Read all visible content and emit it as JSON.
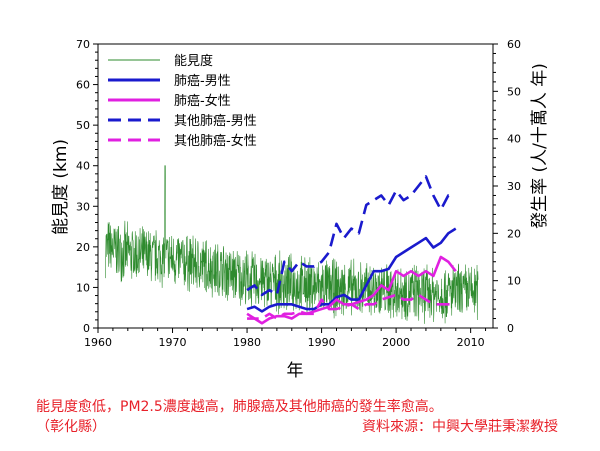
{
  "chart_data": {
    "type": "line",
    "x_axis": {
      "label": "年",
      "range": [
        1960,
        2013
      ],
      "ticks": [
        "1960",
        "1970",
        "1980",
        "1990",
        "2000",
        "2010"
      ]
    },
    "y_left": {
      "label": "能見度 (km)",
      "range": [
        0,
        70
      ],
      "ticks": [
        "0",
        "10",
        "20",
        "30",
        "40",
        "50",
        "60",
        "70"
      ]
    },
    "y_right": {
      "label": "發生率 (人/十萬人 年)",
      "range": [
        0,
        60
      ],
      "ticks": [
        "0",
        "10",
        "20",
        "30",
        "40",
        "50",
        "60"
      ]
    },
    "legend": [
      {
        "label": "能見度",
        "color": "#2e8b2e",
        "style": "thin-solid"
      },
      {
        "label": "肺癌-男性",
        "color": "#1a1acd",
        "style": "solid"
      },
      {
        "label": "肺癌-女性",
        "color": "#e020e0",
        "style": "solid"
      },
      {
        "label": "其他肺癌-男性",
        "color": "#1a1acd",
        "style": "dashed"
      },
      {
        "label": "其他肺癌-女性",
        "color": "#e020e0",
        "style": "dashed"
      }
    ],
    "series": [
      {
        "name": "能見度",
        "axis": "left",
        "color": "#2e8b2e",
        "x_start": 1961,
        "x_end": 2011,
        "yearly_mean": [
          [
            1961,
            20
          ],
          [
            1965,
            18
          ],
          [
            1970,
            17
          ],
          [
            1975,
            15
          ],
          [
            1980,
            12
          ],
          [
            1985,
            11
          ],
          [
            1990,
            10
          ],
          [
            1995,
            9.5
          ],
          [
            2000,
            9
          ],
          [
            2005,
            8.5
          ],
          [
            2011,
            9
          ]
        ],
        "spread": 8,
        "peak": [
          1969,
          40
        ]
      },
      {
        "name": "肺癌-男性",
        "axis": "right",
        "color": "#1a1acd",
        "x": [
          1980,
          1981,
          1982,
          1983,
          1984,
          1985,
          1986,
          1987,
          1988,
          1989,
          1990,
          1991,
          1992,
          1993,
          1994,
          1995,
          1996,
          1997,
          1998,
          1999,
          2000,
          2001,
          2002,
          2003,
          2004,
          2005,
          2006,
          2007,
          2008
        ],
        "y": [
          4,
          4.5,
          3.5,
          4.5,
          5,
          5,
          5,
          4.5,
          4,
          4,
          5,
          5,
          6.5,
          7,
          6,
          6,
          9,
          12,
          12,
          12.5,
          15,
          16,
          17,
          18,
          19,
          17,
          18,
          20,
          21
        ]
      },
      {
        "name": "肺癌-女性",
        "axis": "right",
        "color": "#e020e0",
        "x": [
          1980,
          1981,
          1982,
          1983,
          1984,
          1985,
          1986,
          1987,
          1988,
          1989,
          1990,
          1991,
          1992,
          1993,
          1994,
          1995,
          1996,
          1997,
          1998,
          1999,
          2000,
          2001,
          2002,
          2003,
          2004,
          2005,
          2006,
          2007,
          2008
        ],
        "y": [
          2,
          2,
          1,
          2,
          2.5,
          2.5,
          2,
          3,
          3,
          3.5,
          4,
          4.5,
          6,
          5,
          5,
          5.5,
          6,
          7,
          9,
          8,
          12,
          11,
          12,
          11,
          12,
          11,
          15,
          14,
          12
        ]
      },
      {
        "name": "其他肺癌-男性",
        "axis": "right",
        "color": "#1a1acd",
        "x": [
          1980,
          1981,
          1982,
          1983,
          1984,
          1985,
          1986,
          1987,
          1988,
          1989,
          1990,
          1991,
          1992,
          1993,
          1994,
          1995,
          1996,
          1997,
          1998,
          1999,
          2000,
          2001,
          2002,
          2003,
          2004,
          2005,
          2006,
          2007,
          2008
        ],
        "y": [
          8,
          9,
          7,
          8,
          7,
          14,
          12,
          14,
          13,
          13,
          14,
          16,
          22,
          19,
          21,
          20,
          26,
          27,
          28,
          26,
          29,
          27,
          28,
          30,
          32,
          28,
          25,
          28,
          28
        ]
      },
      {
        "name": "其他肺癌-女性",
        "axis": "right",
        "color": "#e020e0",
        "x": [
          1980,
          1981,
          1982,
          1983,
          1984,
          1985,
          1986,
          1987,
          1988,
          1989,
          1990,
          1991,
          1992,
          1993,
          1994,
          1995,
          1996,
          1997,
          1998,
          1999,
          2000,
          2001,
          2002,
          2003,
          2004,
          2005,
          2006,
          2007,
          2008
        ],
        "y": [
          3,
          2,
          2,
          3,
          2,
          3,
          3,
          3.5,
          3,
          3,
          6,
          4,
          4,
          4.5,
          5,
          4,
          5,
          5,
          6,
          6.5,
          7,
          6,
          6,
          7,
          6,
          5,
          5,
          5,
          5
        ]
      }
    ]
  },
  "caption": {
    "line1_part1": "能見度愈低，",
    "line1_pm": "PM2.5",
    "line1_part2": "濃度越高，肺腺癌及其他肺癌的發生率愈高。",
    "line2_region": "（彰化縣）",
    "line2_source": "資料來源：中興大學莊秉潔教授"
  }
}
